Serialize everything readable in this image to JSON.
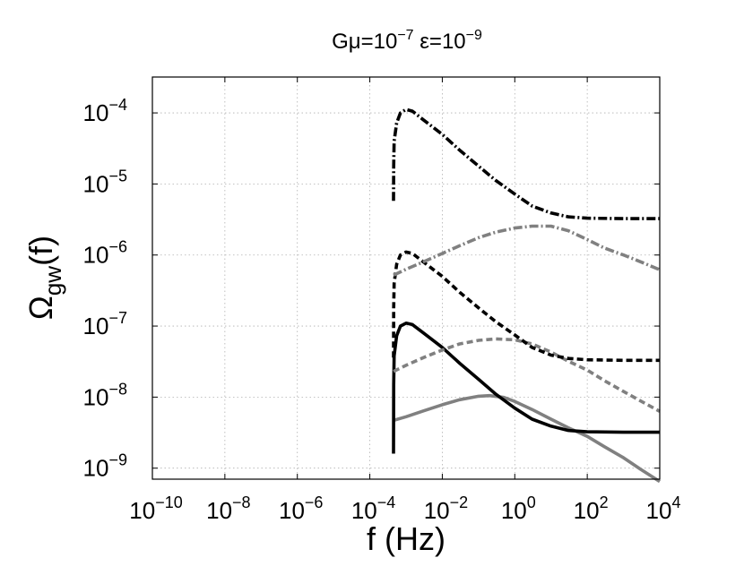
{
  "chart_data": {
    "type": "line",
    "title": {
      "base": "Gμ=10",
      "exp1": "−7",
      "mid": " ε=10",
      "exp2": "−9"
    },
    "xlabel": "f (Hz)",
    "ylabel": {
      "main": "Ω",
      "sub": "gw",
      "tail": "(f)"
    },
    "x_scale": "log",
    "y_scale": "log",
    "xlim": [
      1e-10,
      10000.0
    ],
    "ylim": [
      7e-10,
      0.00032
    ],
    "grid": true,
    "legend": "none",
    "x_ticks": [
      {
        "value": 1e-10,
        "base": "10",
        "exp": "−10"
      },
      {
        "value": 1e-08,
        "base": "10",
        "exp": "−8"
      },
      {
        "value": 1e-06,
        "base": "10",
        "exp": "−6"
      },
      {
        "value": 0.0001,
        "base": "10",
        "exp": "−4"
      },
      {
        "value": 0.01,
        "base": "10",
        "exp": "−2"
      },
      {
        "value": 1,
        "base": "10",
        "exp": "0"
      },
      {
        "value": 100.0,
        "base": "10",
        "exp": "2"
      },
      {
        "value": 10000.0,
        "base": "10",
        "exp": "4"
      }
    ],
    "y_ticks": [
      {
        "value": 1e-09,
        "base": "10",
        "exp": "−9"
      },
      {
        "value": 1e-08,
        "base": "10",
        "exp": "−8"
      },
      {
        "value": 1e-07,
        "base": "10",
        "exp": "−7"
      },
      {
        "value": 1e-06,
        "base": "10",
        "exp": "−6"
      },
      {
        "value": 1e-05,
        "base": "10",
        "exp": "−5"
      },
      {
        "value": 0.0001,
        "base": "10",
        "exp": "−4"
      }
    ],
    "series": [
      {
        "color": "#808080",
        "style": "solid",
        "points": [
          [
            0.00045,
            4.7e-09
          ],
          [
            0.001,
            5.3e-09
          ],
          [
            0.003,
            6.4e-09
          ],
          [
            0.01,
            7.8e-09
          ],
          [
            0.03,
            9.2e-09
          ],
          [
            0.1,
            1.03e-08
          ],
          [
            0.2,
            1.05e-08
          ],
          [
            0.5,
            9.9e-09
          ],
          [
            1,
            8.7e-09
          ],
          [
            3,
            6.7e-09
          ],
          [
            10,
            4.9e-09
          ],
          [
            30,
            3.7e-09
          ],
          [
            100,
            2.8e-09
          ],
          [
            300,
            2e-09
          ],
          [
            1000,
            1.4e-09
          ],
          [
            3000,
            9.6e-10
          ],
          [
            10000.0,
            6.5e-10
          ]
        ]
      },
      {
        "color": "#000000",
        "style": "solid",
        "points": [
          [
            0.00045,
            1.6e-09
          ],
          [
            0.000455,
            1.5e-08
          ],
          [
            0.00047,
            3.8e-08
          ],
          [
            0.00055,
            7.3e-08
          ],
          [
            0.0007,
            1e-07
          ],
          [
            0.001,
            1.1e-07
          ],
          [
            0.0015,
            1.05e-07
          ],
          [
            0.003,
            8e-08
          ],
          [
            0.01,
            5e-08
          ],
          [
            0.03,
            3e-08
          ],
          [
            0.1,
            1.78e-08
          ],
          [
            0.3,
            1.1e-08
          ],
          [
            1,
            7e-09
          ],
          [
            3,
            4.9e-09
          ],
          [
            10,
            3.9e-09
          ],
          [
            30,
            3.4e-09
          ],
          [
            100,
            3.25e-09
          ],
          [
            1000,
            3.2e-09
          ],
          [
            10000.0,
            3.2e-09
          ]
        ]
      },
      {
        "color": "#808080",
        "style": "dashed",
        "points": [
          [
            0.00045,
            2.3e-08
          ],
          [
            0.001,
            2.8e-08
          ],
          [
            0.003,
            3.6e-08
          ],
          [
            0.01,
            4.6e-08
          ],
          [
            0.03,
            5.6e-08
          ],
          [
            0.1,
            6.3e-08
          ],
          [
            0.3,
            6.6e-08
          ],
          [
            1,
            6.4e-08
          ],
          [
            3,
            5.6e-08
          ],
          [
            10,
            4.3e-08
          ],
          [
            30,
            3.2e-08
          ],
          [
            100,
            2.4e-08
          ],
          [
            300,
            1.7e-08
          ],
          [
            1000,
            1.2e-08
          ],
          [
            3000,
            8.8e-09
          ],
          [
            10000.0,
            6.3e-09
          ]
        ]
      },
      {
        "color": "#000000",
        "style": "dashed",
        "points": [
          [
            0.00045,
            3.6e-08
          ],
          [
            0.000455,
            1.8e-07
          ],
          [
            0.00047,
            4e-07
          ],
          [
            0.00055,
            7.4e-07
          ],
          [
            0.0007,
            1e-06
          ],
          [
            0.001,
            1.1e-06
          ],
          [
            0.0015,
            1.05e-06
          ],
          [
            0.003,
            8e-07
          ],
          [
            0.01,
            5e-07
          ],
          [
            0.03,
            3e-07
          ],
          [
            0.1,
            1.8e-07
          ],
          [
            0.3,
            1.15e-07
          ],
          [
            1,
            7.5e-08
          ],
          [
            3,
            5e-08
          ],
          [
            10,
            3.9e-08
          ],
          [
            30,
            3.5e-08
          ],
          [
            100,
            3.35e-08
          ],
          [
            1000,
            3.3e-08
          ],
          [
            10000.0,
            3.3e-08
          ]
        ]
      },
      {
        "color": "#808080",
        "style": "dashdot",
        "points": [
          [
            0.00045,
            5.2e-07
          ],
          [
            0.001,
            6.3e-07
          ],
          [
            0.003,
            8e-07
          ],
          [
            0.01,
            1.05e-06
          ],
          [
            0.03,
            1.35e-06
          ],
          [
            0.1,
            1.75e-06
          ],
          [
            0.3,
            2.1e-06
          ],
          [
            1,
            2.4e-06
          ],
          [
            3,
            2.55e-06
          ],
          [
            10,
            2.55e-06
          ],
          [
            30,
            2.2e-06
          ],
          [
            100,
            1.65e-06
          ],
          [
            300,
            1.25e-06
          ],
          [
            1000,
            1e-06
          ],
          [
            3000,
            8e-07
          ],
          [
            10000.0,
            6.2e-07
          ]
        ]
      },
      {
        "color": "#000000",
        "style": "dashdot",
        "points": [
          [
            0.00045,
            5.8e-06
          ],
          [
            0.000455,
            1.8e-05
          ],
          [
            0.00047,
            4e-05
          ],
          [
            0.00055,
            7.2e-05
          ],
          [
            0.0007,
            0.0001
          ],
          [
            0.001,
            0.000112
          ],
          [
            0.0015,
            0.000106
          ],
          [
            0.003,
            8e-05
          ],
          [
            0.01,
            5e-05
          ],
          [
            0.03,
            3e-05
          ],
          [
            0.1,
            1.78e-05
          ],
          [
            0.3,
            1.12e-05
          ],
          [
            1,
            7.2e-06
          ],
          [
            3,
            4.9e-06
          ],
          [
            10,
            3.9e-06
          ],
          [
            30,
            3.45e-06
          ],
          [
            100,
            3.3e-06
          ],
          [
            1000,
            3.25e-06
          ],
          [
            10000.0,
            3.25e-06
          ]
        ]
      }
    ]
  }
}
